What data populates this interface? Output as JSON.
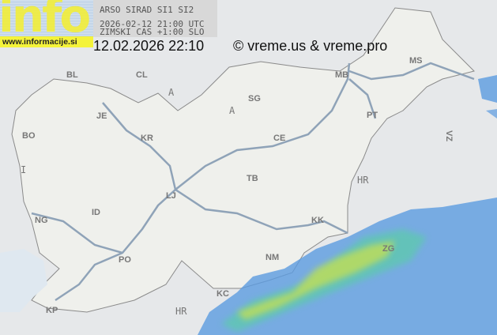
{
  "logo": {
    "text": "info",
    "url_label": "www.informacije.si"
  },
  "header": {
    "source": "ARSO SIRAD SI1 SI2",
    "utc_time": "2026-02-12 21:00 UTC",
    "local_note": "ZIMSKI CAS +1:00 SLO",
    "timestamp": "12.02.2026 22:10",
    "copyright": "© vreme.us & vreme.pro"
  },
  "map": {
    "countries": {
      "austria": "A",
      "italy": "I",
      "croatia_north": "HR",
      "croatia_south": "HR"
    },
    "cities": {
      "BL": "BL",
      "CL": "CL",
      "JE": "JE",
      "BO": "BO",
      "KR": "KR",
      "LJ": "LJ",
      "ID": "ID",
      "NG": "NG",
      "PO": "PO",
      "KP": "KP",
      "KC": "KC",
      "NM": "NM",
      "KK": "KK",
      "TB": "TB",
      "CE": "CE",
      "SG": "SG",
      "MB": "MB",
      "MS": "MS",
      "PT": "PT",
      "ZG": "ZG",
      "VZ": "VZ"
    },
    "colors": {
      "background": "#e6e8ea",
      "land": "#eff0ec",
      "highway": "#8fa3b8",
      "radar_light": "#5b9be0",
      "radar_mid": "#5fc8b0",
      "radar_strong": "#c8e050"
    }
  }
}
